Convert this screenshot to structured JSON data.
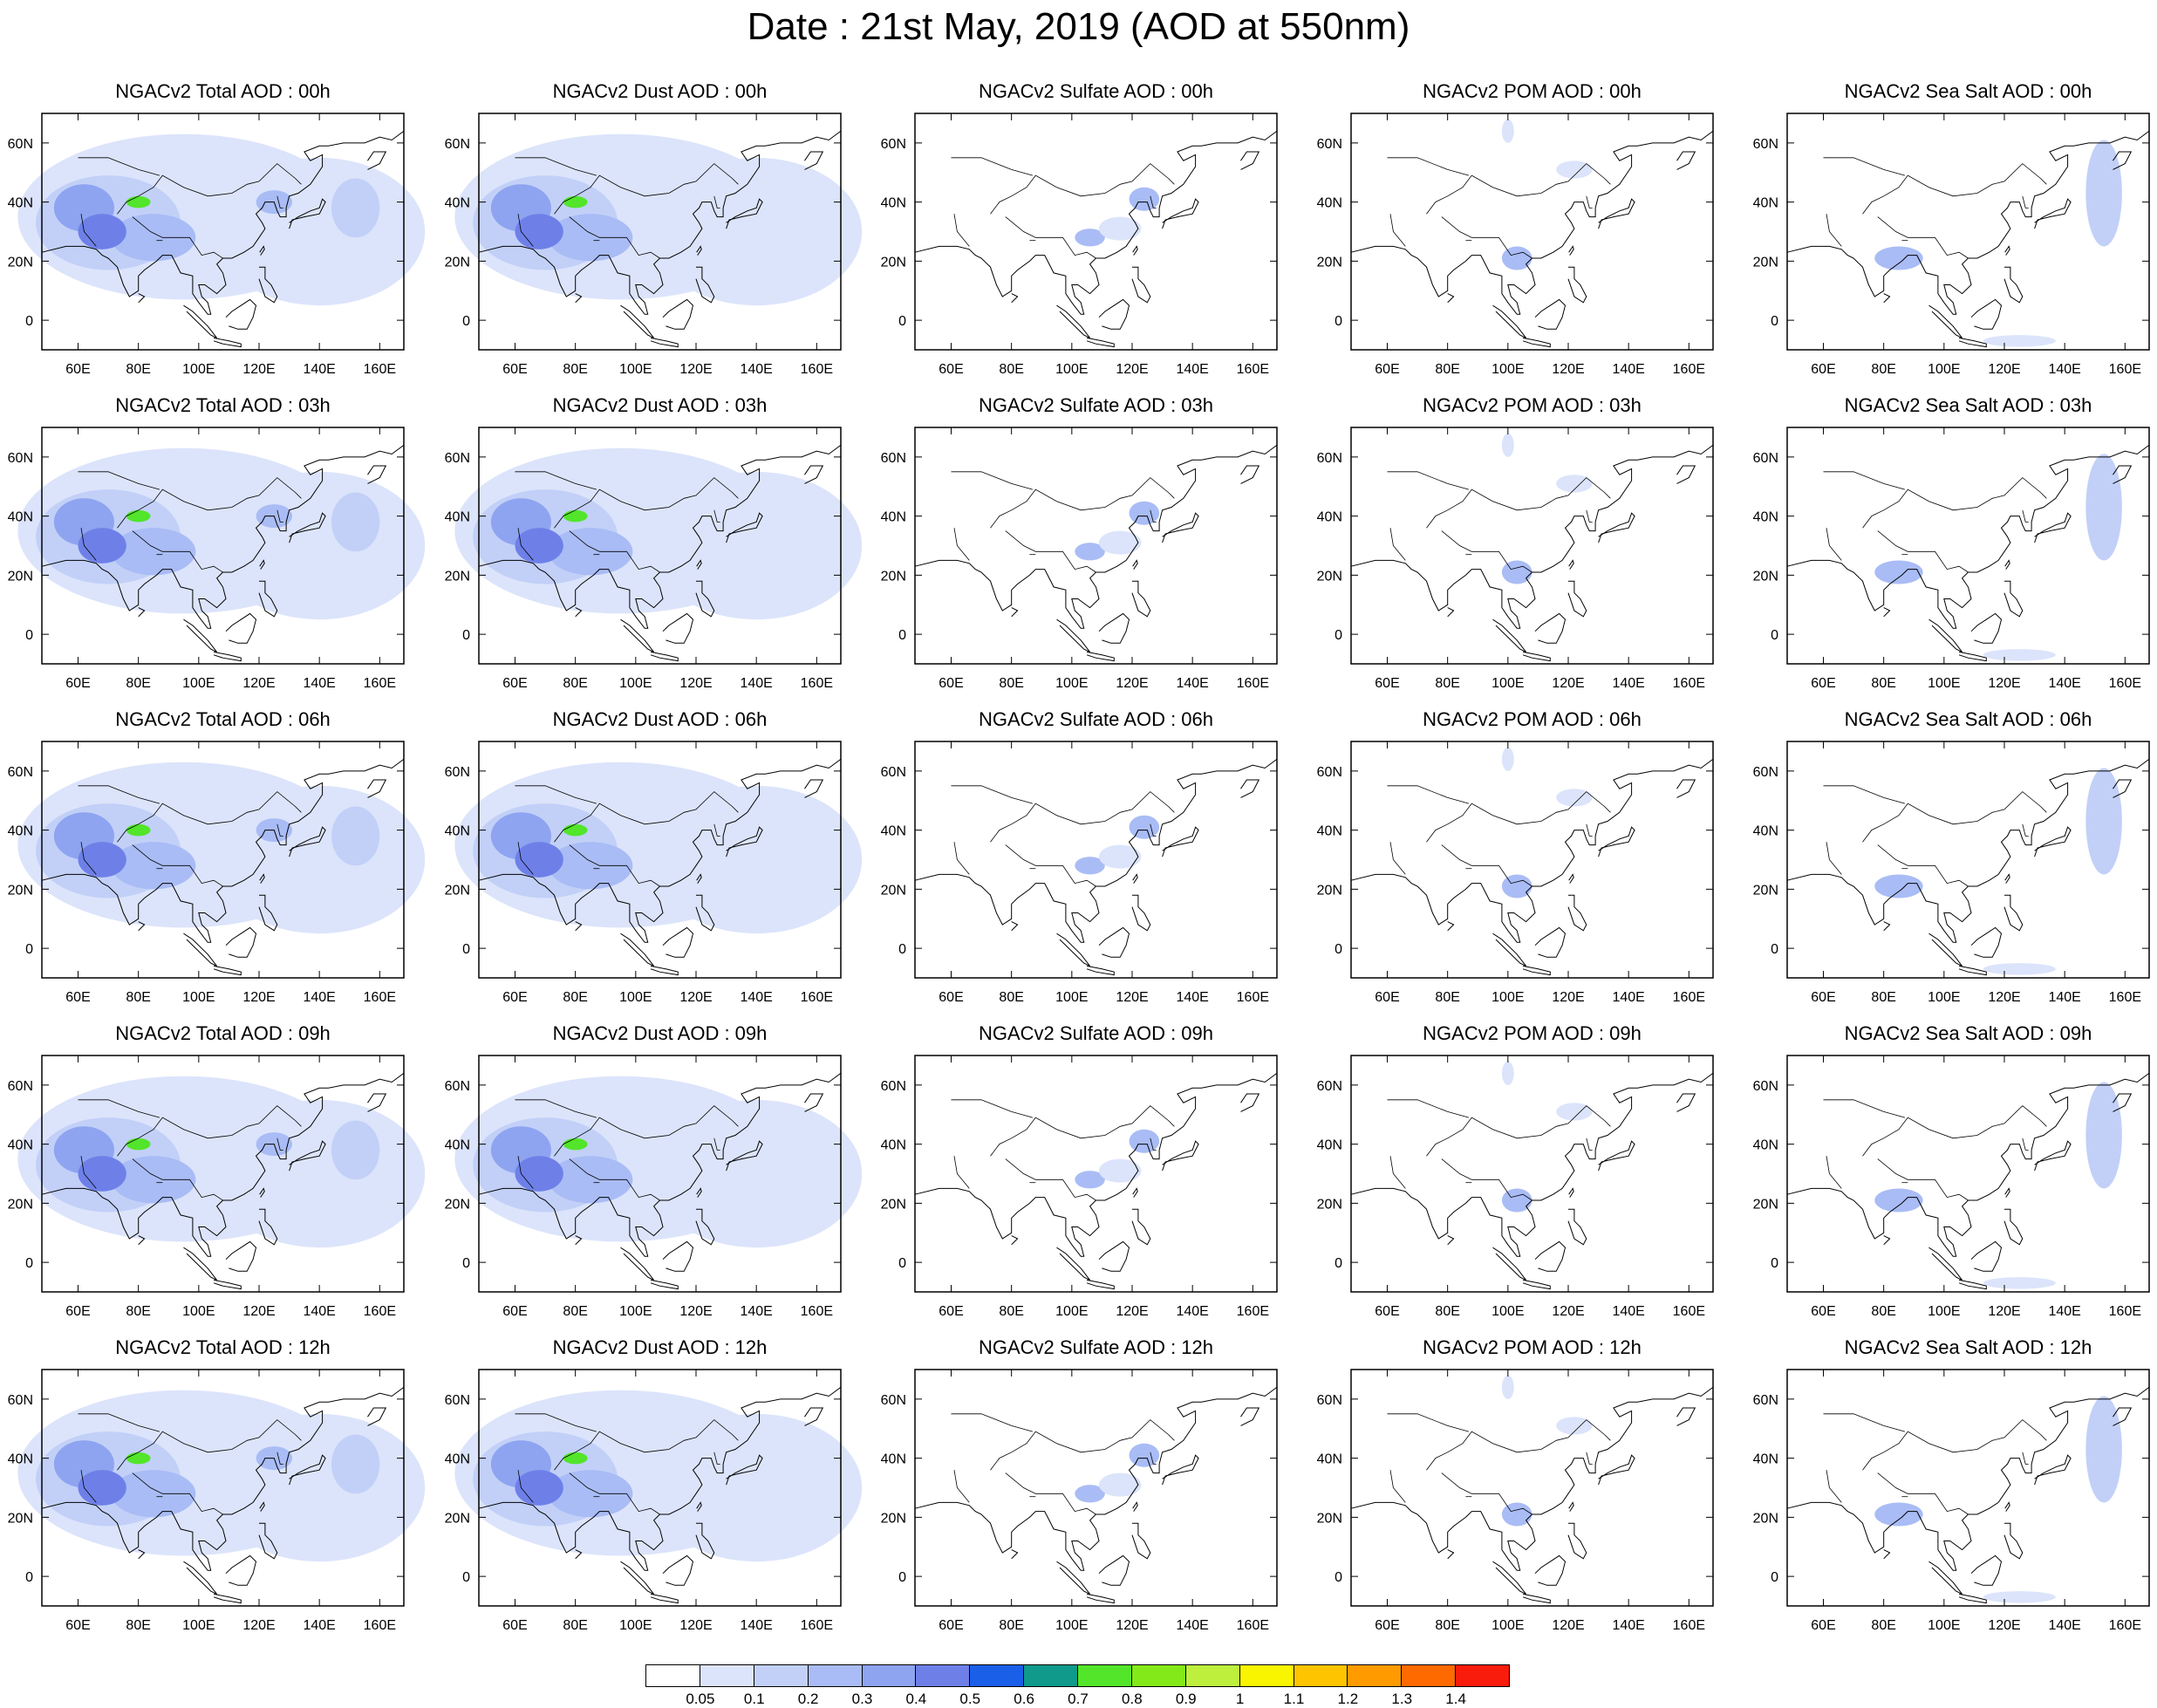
{
  "title": "Date : 21st May, 2019 (AOD at 550nm)",
  "axes": {
    "lon_ticks": [
      "60E",
      "80E",
      "100E",
      "120E",
      "140E",
      "160E"
    ],
    "lon_values": [
      60,
      80,
      100,
      120,
      140,
      160
    ],
    "lat_ticks": [
      "60N",
      "40N",
      "20N",
      "0"
    ],
    "lat_values": [
      60,
      40,
      20,
      0
    ],
    "lon_range": [
      48,
      168
    ],
    "lat_range": [
      -10,
      70
    ]
  },
  "panels": [
    [
      "NGACv2 Total AOD : 00h",
      "NGACv2 Dust AOD : 00h",
      "NGACv2 Sulfate AOD : 00h",
      "NGACv2 POM AOD : 00h",
      "NGACv2 Sea Salt AOD : 00h"
    ],
    [
      "NGACv2 Total AOD : 03h",
      "NGACv2 Dust AOD : 03h",
      "NGACv2 Sulfate AOD : 03h",
      "NGACv2 POM AOD : 03h",
      "NGACv2 Sea Salt AOD : 03h"
    ],
    [
      "NGACv2 Total AOD : 06h",
      "NGACv2 Dust AOD : 06h",
      "NGACv2 Sulfate AOD : 06h",
      "NGACv2 POM AOD : 06h",
      "NGACv2 Sea Salt AOD : 06h"
    ],
    [
      "NGACv2 Total AOD : 09h",
      "NGACv2 Dust AOD : 09h",
      "NGACv2 Sulfate AOD : 09h",
      "NGACv2 POM AOD : 09h",
      "NGACv2 Sea Salt  AOD : 09h"
    ],
    [
      "NGACv2 Total AOD  : 12h",
      "NGACv2 Dust AOD : 12h",
      "NGACv2 Sulfate AOD : 12h",
      "NGACv2 POM  AOD : 12h",
      "NGACv2 Sea Salt  AOD : 12h"
    ]
  ],
  "colorbar": {
    "labels": [
      "0.05",
      "0.1",
      "0.2",
      "0.3",
      "0.4",
      "0.5",
      "0.6",
      "0.7",
      "0.8",
      "0.9",
      "1",
      "1.1",
      "1.2",
      "1.3",
      "1.4"
    ],
    "colors": [
      "#ffffff",
      "#dce4fb",
      "#c2d0f8",
      "#a9bcf5",
      "#8ea4f0",
      "#6e80e8",
      "#1a5fe8",
      "#0f9a8c",
      "#52e52a",
      "#84e918",
      "#bdef3c",
      "#f9f500",
      "#ffc400",
      "#ff9a00",
      "#ff6a00",
      "#f91c0c"
    ]
  },
  "fill_colors": {
    "land_outline": "#000000",
    "aod_low": "#dce4fb",
    "aod_mid": "#c2d0f8",
    "aod_high": "#a9bcf5",
    "aod_vhigh": "#8ea4f0",
    "aod_peak": "#6e80e8",
    "aod_max": "#52e52a"
  }
}
